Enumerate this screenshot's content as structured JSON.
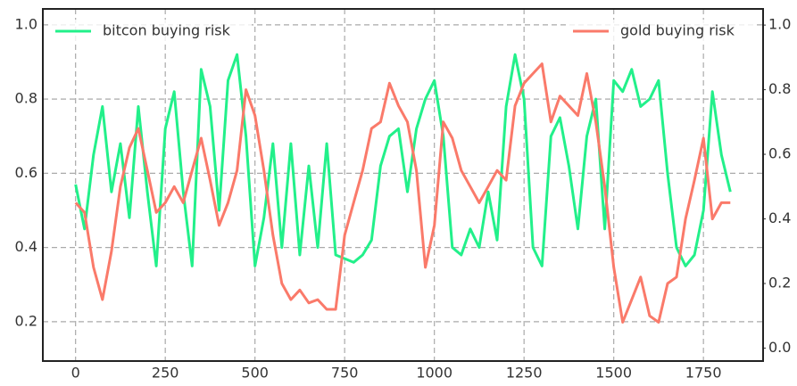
{
  "chart_data": {
    "type": "line",
    "x": [
      0,
      25,
      50,
      75,
      100,
      125,
      150,
      175,
      200,
      225,
      250,
      275,
      300,
      325,
      350,
      375,
      400,
      425,
      450,
      475,
      500,
      525,
      550,
      575,
      600,
      625,
      650,
      675,
      700,
      725,
      750,
      775,
      800,
      825,
      850,
      875,
      900,
      925,
      950,
      975,
      1000,
      1025,
      1050,
      1075,
      1100,
      1125,
      1150,
      1175,
      1200,
      1225,
      1250,
      1275,
      1300,
      1325,
      1350,
      1375,
      1400,
      1425,
      1450,
      1475,
      1500,
      1525,
      1550,
      1575,
      1600,
      1625,
      1650,
      1675,
      1700,
      1725,
      1750,
      1775,
      1800,
      1825
    ],
    "series": [
      {
        "name": "bitcon buying risk",
        "color": "#22f08a",
        "axis": "y",
        "values": [
          0.57,
          0.45,
          0.65,
          0.78,
          0.55,
          0.68,
          0.48,
          0.78,
          0.55,
          0.35,
          0.72,
          0.82,
          0.55,
          0.35,
          0.88,
          0.78,
          0.5,
          0.85,
          0.92,
          0.7,
          0.35,
          0.48,
          0.68,
          0.4,
          0.68,
          0.38,
          0.62,
          0.4,
          0.68,
          0.38,
          0.37,
          0.36,
          0.38,
          0.42,
          0.62,
          0.7,
          0.72,
          0.55,
          0.72,
          0.8,
          0.85,
          0.7,
          0.4,
          0.38,
          0.45,
          0.4,
          0.55,
          0.42,
          0.78,
          0.92,
          0.8,
          0.4,
          0.35,
          0.7,
          0.75,
          0.62,
          0.45,
          0.7,
          0.8,
          0.45,
          0.85,
          0.82,
          0.88,
          0.78,
          0.8,
          0.85,
          0.6,
          0.4,
          0.35,
          0.38,
          0.5,
          0.82,
          0.65,
          0.55
        ]
      },
      {
        "name": "gold buying risk",
        "color": "#fa7a6a",
        "axis": "y2",
        "values": [
          0.45,
          0.42,
          0.25,
          0.15,
          0.3,
          0.5,
          0.62,
          0.68,
          0.55,
          0.42,
          0.45,
          0.5,
          0.45,
          0.55,
          0.65,
          0.52,
          0.38,
          0.45,
          0.55,
          0.8,
          0.72,
          0.55,
          0.35,
          0.2,
          0.15,
          0.18,
          0.14,
          0.15,
          0.12,
          0.12,
          0.35,
          0.45,
          0.55,
          0.68,
          0.7,
          0.82,
          0.75,
          0.7,
          0.55,
          0.25,
          0.38,
          0.7,
          0.65,
          0.55,
          0.5,
          0.45,
          0.5,
          0.55,
          0.52,
          0.75,
          0.82,
          0.85,
          0.88,
          0.7,
          0.78,
          0.75,
          0.72,
          0.85,
          0.7,
          0.5,
          0.25,
          0.08,
          0.15,
          0.22,
          0.1,
          0.08,
          0.2,
          0.22,
          0.4,
          0.52,
          0.65,
          0.4,
          0.45,
          0.45
        ]
      }
    ],
    "xlim": [
      -91.25,
      1916.25
    ],
    "xticks": [
      0,
      250,
      500,
      750,
      1000,
      1250,
      1500,
      1750
    ],
    "ylim": [
      0.094,
      1.043
    ],
    "yticks": [
      0.2,
      0.4,
      0.6,
      0.8,
      {
        "value": 1,
        "label": "1.0"
      }
    ],
    "y2lim": [
      -0.04,
      1.05
    ],
    "y2ticks": [
      {
        "value": 0,
        "label": "0.0"
      },
      0.2,
      0.4,
      0.6,
      0.8,
      {
        "value": 1,
        "label": "1.0"
      }
    ],
    "grid": true
  }
}
